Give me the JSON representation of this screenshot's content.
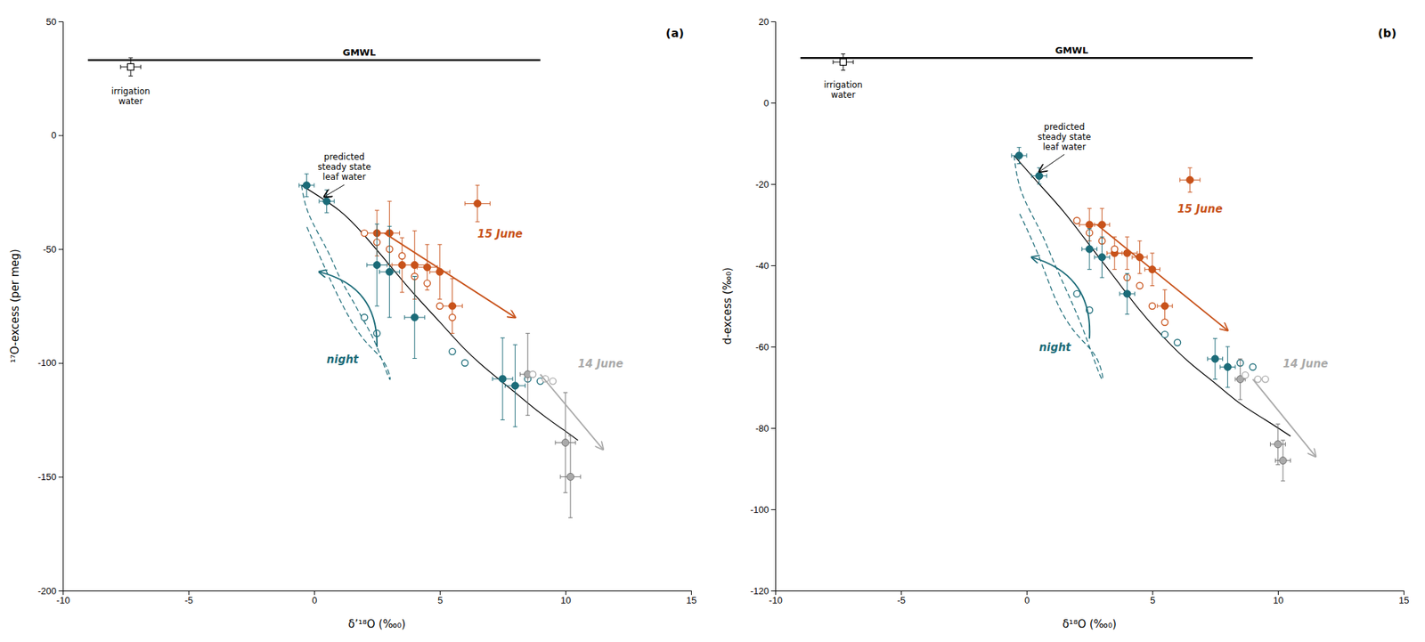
{
  "chart_data": [
    {
      "type": "scatter",
      "title": "(a)",
      "x_label": "δ’¹⁸O (‰₀)",
      "y_label": "¹⁷O-excess (per meg)",
      "xlim": [
        -10,
        15
      ],
      "ylim": [
        -200,
        50
      ],
      "xticks": [
        -10,
        -5,
        0,
        5,
        10,
        15
      ],
      "yticks": [
        -200,
        -150,
        -100,
        -50,
        0,
        50
      ],
      "series": [
        {
          "name": "GMWL",
          "type": "line",
          "line_style": "solid",
          "color": "#000000",
          "x": [
            -9,
            9
          ],
          "values": [
            33,
            33
          ]
        },
        {
          "name": "irrigation\nwater",
          "type": "scatter",
          "marker": "square",
          "color": "#000000",
          "x": [
            -7.3
          ],
          "values": [
            30
          ],
          "x_error": [
            0.4
          ],
          "error": [
            4
          ]
        },
        {
          "type": "line",
          "line_style": "solid",
          "color": "#000000",
          "x": [
            -0.5,
            1.0,
            2.0,
            3.0,
            4.0,
            5.0,
            6.0,
            7.0,
            8.0,
            9.0,
            10.0,
            10.5
          ],
          "values": [
            -22,
            -33,
            -44,
            -57,
            -70,
            -82,
            -94,
            -104,
            -113,
            -122,
            -130,
            -134
          ]
        },
        {
          "type": "line",
          "line_style": "dashed",
          "color": "#1b6b78",
          "x": [
            -0.5,
            -0.2,
            0.5,
            1.0,
            1.5,
            2.0,
            2.5,
            3.0,
            2.8,
            2.0,
            1.2,
            0.5,
            -0.3
          ],
          "values": [
            -22,
            -35,
            -50,
            -62,
            -72,
            -82,
            -93,
            -107,
            -100,
            -90,
            -76,
            -60,
            -40
          ]
        },
        {
          "type": "scatter",
          "marker": "dot",
          "color": "#1b6b78",
          "x": [
            -0.3,
            0.5
          ],
          "values": [
            -22,
            -29
          ]
        },
        {
          "type": "scatter",
          "marker": "circle",
          "color": "#c8521a",
          "x": [
            2.5,
            3.0,
            3.5,
            4.0,
            4.5,
            5.0,
            6.5,
            5.5
          ],
          "values": [
            -43,
            -43,
            -57,
            -57,
            -58,
            -60,
            -30,
            -75
          ],
          "x_error": [
            0.5,
            0.4,
            0.4,
            0.5,
            0.4,
            0.4,
            0.5,
            0.4
          ],
          "error": [
            10,
            14,
            12,
            15,
            10,
            12,
            8,
            12
          ]
        },
        {
          "type": "scatter",
          "marker": "open-circle",
          "color": "#c8521a",
          "x": [
            2.0,
            2.5,
            3.0,
            3.5,
            4.0,
            4.5,
            5.0,
            5.5
          ],
          "values": [
            -43,
            -47,
            -50,
            -53,
            -62,
            -65,
            -75,
            -80
          ]
        },
        {
          "type": "scatter",
          "marker": "circle",
          "color": "#1b6b78",
          "x": [
            -0.3,
            0.5,
            2.5,
            3.0,
            4.0,
            7.5,
            8.0
          ],
          "values": [
            -22,
            -29,
            -57,
            -60,
            -80,
            -107,
            -110
          ],
          "x_error": [
            0.3,
            0.3,
            0.4,
            0.4,
            0.4,
            0.4,
            0.4
          ],
          "error": [
            5,
            5,
            18,
            20,
            18,
            18,
            18
          ]
        },
        {
          "type": "scatter",
          "marker": "open-circle",
          "color": "#1b6b78",
          "x": [
            2.0,
            2.5,
            5.5,
            6.0,
            8.5,
            9.0
          ],
          "values": [
            -80,
            -87,
            -95,
            -100,
            -107,
            -108
          ]
        },
        {
          "type": "scatter",
          "marker": "circle",
          "color": "#aaaaaa",
          "x": [
            8.5,
            10.0,
            10.2
          ],
          "values": [
            -105,
            -135,
            -150
          ],
          "x_error": [
            0.3,
            0.4,
            0.4
          ],
          "error": [
            18,
            22,
            18
          ]
        },
        {
          "type": "scatter",
          "marker": "open-circle",
          "color": "#aaaaaa",
          "x": [
            8.7,
            9.2,
            9.5
          ],
          "values": [
            -105,
            -107,
            -108
          ]
        }
      ],
      "annotations": [
        {
          "text": "predicted\nsteady state\nleaf water",
          "x": 1.2,
          "y": -8,
          "arrow_to": [
            0.4,
            -27
          ]
        },
        {
          "text": "15 June",
          "color": "#c8521a",
          "x": 6.5,
          "y": -45,
          "arrow_from": [
            2.8,
            -43
          ],
          "arrow_to": [
            8.0,
            -80
          ]
        },
        {
          "text": "14 June",
          "color": "#aaaaaa",
          "x": 10.5,
          "y": -102,
          "arrow_from": [
            9.0,
            -105
          ],
          "arrow_to": [
            11.5,
            -138
          ]
        },
        {
          "text": "night",
          "color": "#1b6b78",
          "x": 0.5,
          "y": -100,
          "arrow_from": [
            2.5,
            -93
          ],
          "arrow_to": [
            0.2,
            -60
          ],
          "line_style": "curved"
        }
      ]
    },
    {
      "type": "scatter",
      "title": "(b)",
      "x_label": "δ¹⁸O (‰₀)",
      "y_label": "d-excess (‰₀)",
      "xlim": [
        -10,
        15
      ],
      "ylim": [
        -120,
        20
      ],
      "xticks": [
        -10,
        -5,
        0,
        5,
        10,
        15
      ],
      "yticks": [
        -120,
        -100,
        -80,
        -60,
        -40,
        -20,
        0,
        20
      ],
      "series": [
        {
          "name": "GMWL",
          "type": "line",
          "line_style": "solid",
          "color": "#000000",
          "x": [
            -9,
            9
          ],
          "values": [
            11,
            11
          ]
        },
        {
          "name": "irrigation\nwater",
          "type": "scatter",
          "marker": "square",
          "color": "#000000",
          "x": [
            -7.3
          ],
          "values": [
            10
          ],
          "x_error": [
            0.4
          ],
          "error": [
            2
          ]
        },
        {
          "type": "line",
          "line_style": "solid",
          "color": "#000000",
          "x": [
            -0.5,
            0.5,
            1.5,
            2.5,
            3.5,
            4.5,
            5.5,
            6.5,
            7.5,
            8.5,
            9.5,
            10.5
          ],
          "values": [
            -13,
            -20,
            -27,
            -35,
            -43,
            -51,
            -58,
            -64,
            -69,
            -74,
            -78,
            -82
          ]
        },
        {
          "type": "line",
          "line_style": "dashed",
          "color": "#1b6b78",
          "x": [
            -0.5,
            -0.2,
            0.5,
            1.0,
            1.5,
            2.0,
            2.5,
            3.0,
            2.8,
            2.0,
            1.2,
            0.5,
            -0.3
          ],
          "values": [
            -13,
            -22,
            -31,
            -38,
            -45,
            -52,
            -60,
            -68,
            -63,
            -57,
            -49,
            -38,
            -27
          ]
        },
        {
          "type": "scatter",
          "marker": "dot",
          "color": "#1b6b78",
          "x": [
            -0.3,
            0.5
          ],
          "values": [
            -13,
            -18
          ]
        },
        {
          "type": "scatter",
          "marker": "circle",
          "color": "#c8521a",
          "x": [
            2.5,
            3.0,
            3.5,
            4.0,
            4.5,
            5.0,
            6.5,
            5.5
          ],
          "values": [
            -30,
            -30,
            -37,
            -37,
            -38,
            -41,
            -19,
            -50
          ],
          "x_error": [
            0.4,
            0.3,
            0.3,
            0.4,
            0.3,
            0.3,
            0.4,
            0.3
          ],
          "error": [
            4,
            4,
            4,
            4,
            4,
            4,
            3,
            4
          ]
        },
        {
          "type": "scatter",
          "marker": "open-circle",
          "color": "#c8521a",
          "x": [
            2.0,
            2.5,
            3.0,
            3.5,
            4.0,
            4.5,
            5.0,
            5.5
          ],
          "values": [
            -29,
            -32,
            -34,
            -36,
            -43,
            -45,
            -50,
            -54
          ]
        },
        {
          "type": "scatter",
          "marker": "circle",
          "color": "#1b6b78",
          "x": [
            -0.3,
            0.5,
            2.5,
            3.0,
            4.0,
            7.5,
            8.0
          ],
          "values": [
            -13,
            -18,
            -36,
            -38,
            -47,
            -63,
            -65
          ],
          "x_error": [
            0.3,
            0.3,
            0.3,
            0.3,
            0.3,
            0.3,
            0.3
          ],
          "error": [
            2,
            2,
            5,
            5,
            5,
            5,
            5
          ]
        },
        {
          "type": "scatter",
          "marker": "open-circle",
          "color": "#1b6b78",
          "x": [
            2.0,
            2.5,
            5.5,
            6.0,
            8.5,
            9.0
          ],
          "values": [
            -47,
            -51,
            -57,
            -59,
            -64,
            -65
          ]
        },
        {
          "type": "scatter",
          "marker": "circle",
          "color": "#aaaaaa",
          "x": [
            8.5,
            10.0,
            10.2
          ],
          "values": [
            -68,
            -84,
            -88
          ],
          "x_error": [
            0.2,
            0.3,
            0.3
          ],
          "error": [
            5,
            5,
            5
          ]
        },
        {
          "type": "scatter",
          "marker": "open-circle",
          "color": "#aaaaaa",
          "x": [
            8.7,
            9.2,
            9.5
          ],
          "values": [
            -67,
            -68,
            -68
          ]
        }
      ],
      "annotations": [
        {
          "text": "predicted\nsteady state\nleaf water",
          "x": 1.5,
          "y": -5,
          "arrow_to": [
            0.5,
            -17
          ]
        },
        {
          "text": "15 June",
          "color": "#c8521a",
          "x": 6.0,
          "y": -27,
          "arrow_from": [
            2.8,
            -30
          ],
          "arrow_to": [
            8.0,
            -56
          ]
        },
        {
          "text": "14 June",
          "color": "#aaaaaa",
          "x": 10.2,
          "y": -65,
          "arrow_from": [
            9.0,
            -68
          ],
          "arrow_to": [
            11.5,
            -87
          ]
        },
        {
          "text": "night",
          "color": "#1b6b78",
          "x": 0.5,
          "y": -61,
          "arrow_from": [
            2.5,
            -58
          ],
          "arrow_to": [
            0.2,
            -38
          ],
          "line_style": "curved"
        }
      ]
    }
  ]
}
